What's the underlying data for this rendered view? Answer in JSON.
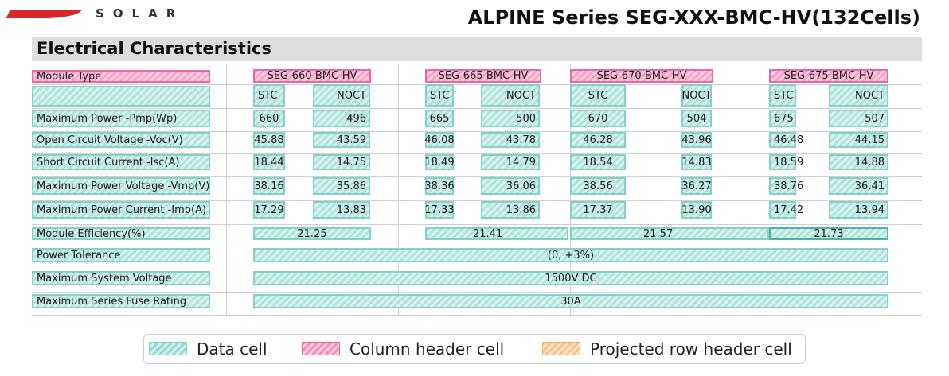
{
  "brand": {
    "logo_text": "SOLAR",
    "logo_color": "#d8282d"
  },
  "title": "ALPINE Series SEG-XXX-BMC-HV(132Cells)",
  "section": "Electrical Characteristics",
  "table": {
    "header_label": "Module Type",
    "models": [
      "SEG-660-BMC-HV",
      "SEG-665-BMC-HV",
      "SEG-670-BMC-HV",
      "SEG-675-BMC-HV"
    ],
    "subheaders": [
      "STC",
      "NOCT",
      "STC",
      "NOCT",
      "STC",
      "NOCT",
      "STC",
      "NOCT"
    ],
    "rows": [
      {
        "label": "Maximum Power -Pmp(Wp)",
        "values": [
          "660",
          "496",
          "665",
          "500",
          "670",
          "504",
          "675",
          "507"
        ]
      },
      {
        "label": "Open Circuit Voltage -Voc(V)",
        "values": [
          "45.88",
          "43.59",
          "46.08",
          "43.78",
          "46.28",
          "43.96",
          "46.48",
          "44.15"
        ]
      },
      {
        "label": "Short Circuit Current -Isc(A)",
        "values": [
          "18.44",
          "14.75",
          "18.49",
          "14.79",
          "18.54",
          "14.83",
          "18.59",
          "14.88"
        ]
      },
      {
        "label": "Maximum Power Voltage -Vmp(V)",
        "values": [
          "38.16",
          "35.86",
          "38.36",
          "36.06",
          "38.56",
          "36.27",
          "38.76",
          "36.41"
        ]
      },
      {
        "label": "Maximum Power Current -Imp(A)",
        "values": [
          "17.29",
          "13.83",
          "17.33",
          "13.86",
          "17.37",
          "13.90",
          "17.42",
          "13.94"
        ]
      }
    ],
    "efficiency": {
      "label": "Module Efficiency(%)",
      "values": [
        "21.25",
        "21.41",
        "21.57",
        "21.73"
      ]
    },
    "spans": [
      {
        "label": "Power Tolerance",
        "value": "(0, +3%)"
      },
      {
        "label": "Maximum System Voltage",
        "value": "1500V DC"
      },
      {
        "label": "Maximum Series Fuse Rating",
        "value": "30A"
      }
    ]
  },
  "legend": {
    "items": [
      {
        "label": "Data cell",
        "color": "#9adcd4"
      },
      {
        "label": "Column header cell",
        "color": "#f590bb"
      },
      {
        "label": "Projected row header cell",
        "color": "#f8c48a"
      }
    ]
  }
}
